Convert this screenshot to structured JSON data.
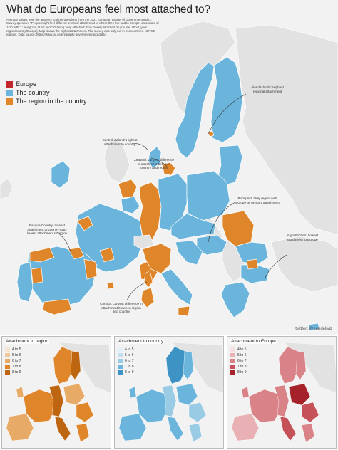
{
  "title": "What do Europeans feel most attached to?",
  "subtitle": "Average values from the answers to three questions from the 2021 European Quality of Government Index. Survey question: \"People might feel different levels of attachment to where they live and to Europe, on a scale of 1-10 with '1' being 'not at all' and '10' being 'very attached', how closely attached do you feel about [your region/country/Europe]. Map shows the highest attachment. The survey was only run in EU countries. NUTS2 regions. Data source: https://www.gu.se/en/quality-government/qog-data/",
  "legend": [
    {
      "label": "Europe",
      "color": "#c1272d"
    },
    {
      "label": "The country",
      "color": "#6bb5dc"
    },
    {
      "label": "The region in the country",
      "color": "#e0862a"
    }
  ],
  "annotations": {
    "aland": "Åland Islands: Highest regional attachment",
    "central_jutland": "Central Jutland: Highest attachment to country",
    "zealand": "Zealand: Largest difference in attachment between country and region",
    "budapest": "Budapest: Only region with Europe as primary attachment",
    "basque": "Basque Country: Lowest attachment to country AND lowest attachment to region",
    "yugoiztochen": "Yugoiztochen: Lowest attachment to Europe",
    "corsica": "Corsica: Largest difference in attachment between region and country"
  },
  "credit": "twitter: @sundeliviz",
  "panels": [
    {
      "title": "Attachment to region",
      "classes": [
        {
          "label": "4 to 5",
          "color": "#f6e6d2"
        },
        {
          "label": "5 to 6",
          "color": "#efc99b"
        },
        {
          "label": "6 to 7",
          "color": "#e8ab67"
        },
        {
          "label": "7 to 8",
          "color": "#e0862a"
        },
        {
          "label": "8 to 9",
          "color": "#bd6510"
        }
      ]
    },
    {
      "title": "Attachment to country",
      "classes": [
        {
          "label": "4 to 5",
          "color": "#e3f0f7"
        },
        {
          "label": "5 to 6",
          "color": "#c3dfee"
        },
        {
          "label": "6 to 7",
          "color": "#9acbe4"
        },
        {
          "label": "7 to 8",
          "color": "#6bb5dc"
        },
        {
          "label": "8 to 9",
          "color": "#3d93c4"
        }
      ]
    },
    {
      "title": "Attachment to Europe",
      "classes": [
        {
          "label": "4 to 5",
          "color": "#f6dfe0"
        },
        {
          "label": "5 to 6",
          "color": "#e9b1b4"
        },
        {
          "label": "6 to 7",
          "color": "#d98388"
        },
        {
          "label": "7 to 8",
          "color": "#c55259"
        },
        {
          "label": "8 to 9",
          "color": "#a5222b"
        }
      ]
    }
  ],
  "colors": {
    "sea": "#f2f2f2",
    "non_eu_land": "#e2e2e2",
    "border": "#ffffff"
  }
}
